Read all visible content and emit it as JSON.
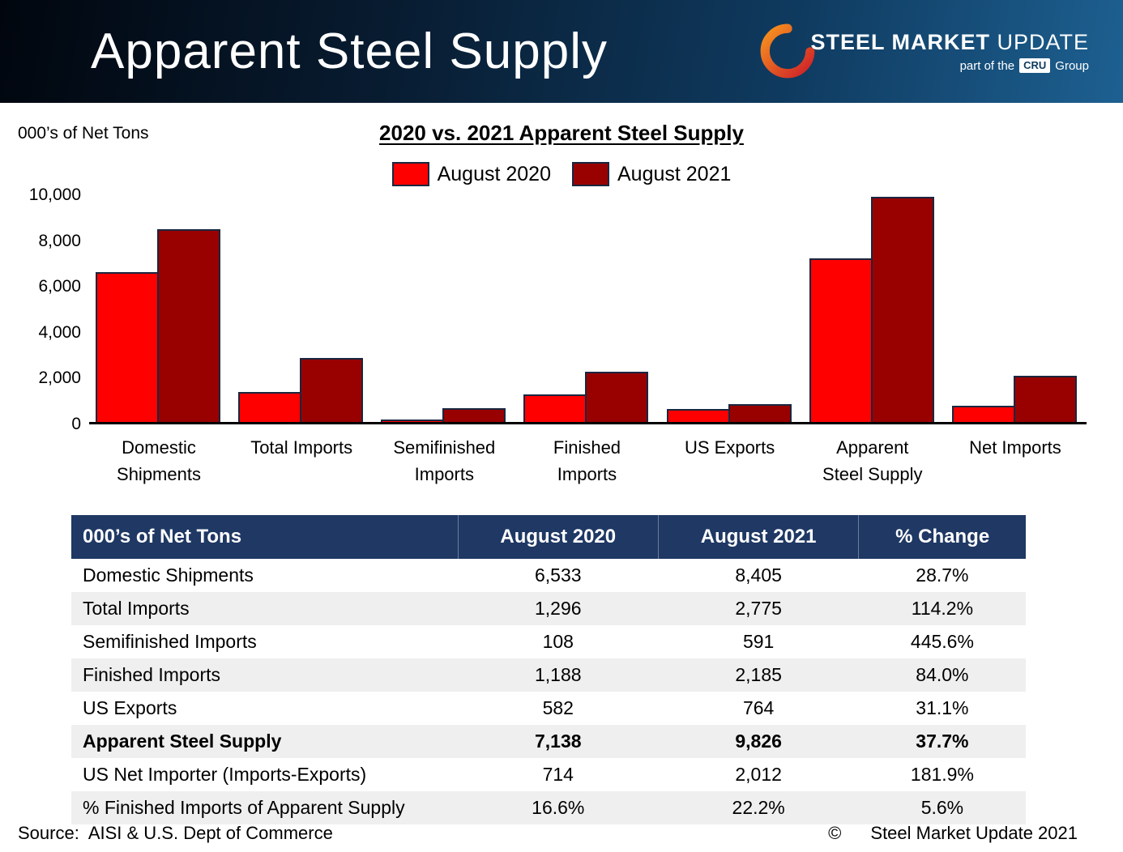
{
  "header": {
    "title": "Apparent Steel Supply",
    "logo": {
      "name_bold": "STEEL MARKET",
      "name_light": " UPDATE",
      "tagline_prefix": "part of the",
      "tagline_cru": "CRU",
      "tagline_suffix": "Group"
    }
  },
  "chart_data": {
    "type": "bar",
    "title": "2020 vs. 2021 Apparent Steel Supply",
    "ylabel": "000’s of Net Tons",
    "xlabel": "",
    "categories": [
      "Domestic Shipments",
      "Total Imports",
      "Semifinished Imports",
      "Finished Imports",
      "US Exports",
      "Apparent Steel Supply",
      "Net Imports"
    ],
    "category_tick_labels": [
      "Domestic\nShipments",
      "Total Imports",
      "Semifinished\nImports",
      "Finished\nImports",
      "US Exports",
      "Apparent\nSteel Supply",
      "Net Imports"
    ],
    "series": [
      {
        "name": "August 2020",
        "color": "#FE0000",
        "values": [
          6533,
          1296,
          108,
          1188,
          582,
          7138,
          714
        ]
      },
      {
        "name": "August 2021",
        "color": "#990000",
        "values": [
          8405,
          2775,
          591,
          2185,
          764,
          9826,
          2012
        ]
      }
    ],
    "ylim": [
      0,
      10000
    ],
    "yticks": [
      0,
      2000,
      4000,
      6000,
      8000,
      10000
    ],
    "ytick_labels": [
      "0",
      "2,000",
      "4,000",
      "6,000",
      "8,000",
      "10,000"
    ],
    "grid": false,
    "legend_position": "top-center",
    "bar_border_color": "#1a2740"
  },
  "table": {
    "headers": [
      "000’s of Net Tons",
      "August 2020",
      "August 2021",
      "% Change"
    ],
    "rows": [
      {
        "cells": [
          "Domestic Shipments",
          "6,533",
          "8,405",
          "28.7%"
        ],
        "bold": false
      },
      {
        "cells": [
          "Total Imports",
          "1,296",
          "2,775",
          "114.2%"
        ],
        "bold": false
      },
      {
        "cells": [
          "Semifinished Imports",
          "108",
          "591",
          "445.6%"
        ],
        "bold": false
      },
      {
        "cells": [
          "Finished Imports",
          "1,188",
          "2,185",
          "84.0%"
        ],
        "bold": false
      },
      {
        "cells": [
          "US Exports",
          "582",
          "764",
          "31.1%"
        ],
        "bold": false
      },
      {
        "cells": [
          "Apparent Steel Supply",
          "7,138",
          "9,826",
          "37.7%"
        ],
        "bold": true
      },
      {
        "cells": [
          "US Net Importer (Imports-Exports)",
          "714",
          "2,012",
          "181.9%"
        ],
        "bold": false
      },
      {
        "cells": [
          "% Finished Imports of Apparent Supply",
          "16.6%",
          "22.2%",
          "5.6%"
        ],
        "bold": false
      }
    ]
  },
  "footer": {
    "source": "Source:  AISI & U.S. Dept of Commerce",
    "copyright_symbol": "©",
    "copyright_text": "Steel Market Update 2021"
  }
}
